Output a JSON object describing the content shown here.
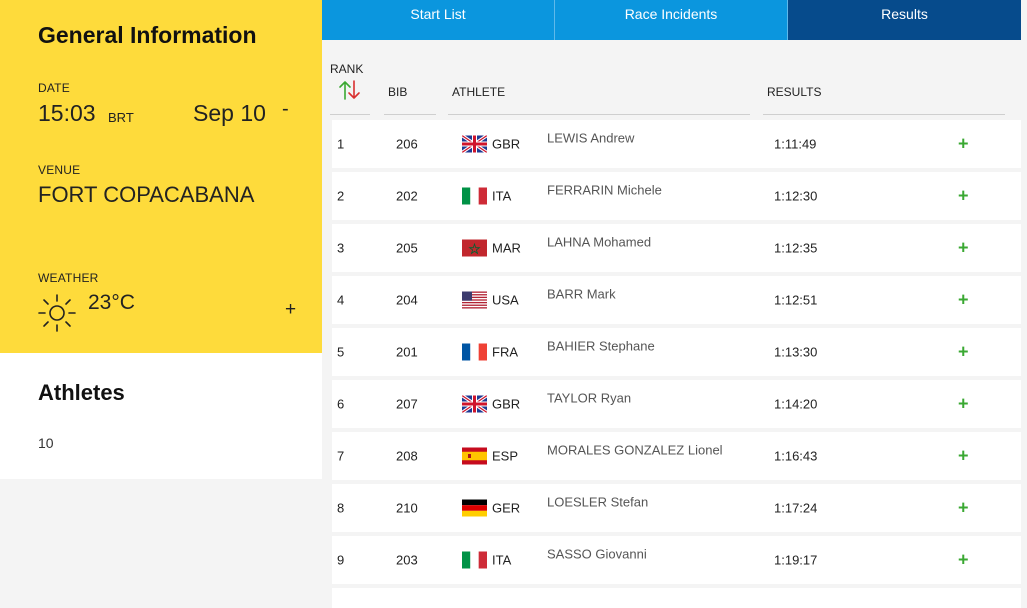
{
  "general": {
    "title": "General Information",
    "date_label": "DATE",
    "time": "15:03",
    "timezone": "BRT",
    "date": "Sep 10",
    "dash": "-",
    "venue_label": "VENUE",
    "venue": "FORT COPACABANA",
    "weather_label": "WEATHER",
    "weather_icon": "sun-icon",
    "temperature": "23°C",
    "expand": "+"
  },
  "athletes": {
    "title": "Athletes",
    "count": "10"
  },
  "tabs": [
    {
      "label": "Start List",
      "active": false
    },
    {
      "label": "Race Incidents",
      "active": false
    },
    {
      "label": "Results",
      "active": true
    }
  ],
  "table": {
    "headers": {
      "rank": "RANK",
      "bib": "BIB",
      "athlete": "ATHLETE",
      "results": "RESULTS"
    },
    "rows": [
      {
        "rank": "1",
        "bib": "206",
        "noc": "GBR",
        "name": "LEWIS Andrew",
        "result": "1:11:49",
        "expand": "+"
      },
      {
        "rank": "2",
        "bib": "202",
        "noc": "ITA",
        "name": "FERRARIN Michele",
        "result": "1:12:30",
        "expand": "+"
      },
      {
        "rank": "3",
        "bib": "205",
        "noc": "MAR",
        "name": "LAHNA Mohamed",
        "result": "1:12:35",
        "expand": "+"
      },
      {
        "rank": "4",
        "bib": "204",
        "noc": "USA",
        "name": "BARR Mark",
        "result": "1:12:51",
        "expand": "+"
      },
      {
        "rank": "5",
        "bib": "201",
        "noc": "FRA",
        "name": "BAHIER Stephane",
        "result": "1:13:30",
        "expand": "+"
      },
      {
        "rank": "6",
        "bib": "207",
        "noc": "GBR",
        "name": "TAYLOR Ryan",
        "result": "1:14:20",
        "expand": "+"
      },
      {
        "rank": "7",
        "bib": "208",
        "noc": "ESP",
        "name": "MORALES GONZALEZ Lionel",
        "result": "1:16:43",
        "expand": "+"
      },
      {
        "rank": "8",
        "bib": "210",
        "noc": "GER",
        "name": "LOESLER Stefan",
        "result": "1:17:24",
        "expand": "+"
      },
      {
        "rank": "9",
        "bib": "203",
        "noc": "ITA",
        "name": "SASSO Giovanni",
        "result": "1:19:17",
        "expand": "+"
      }
    ]
  }
}
